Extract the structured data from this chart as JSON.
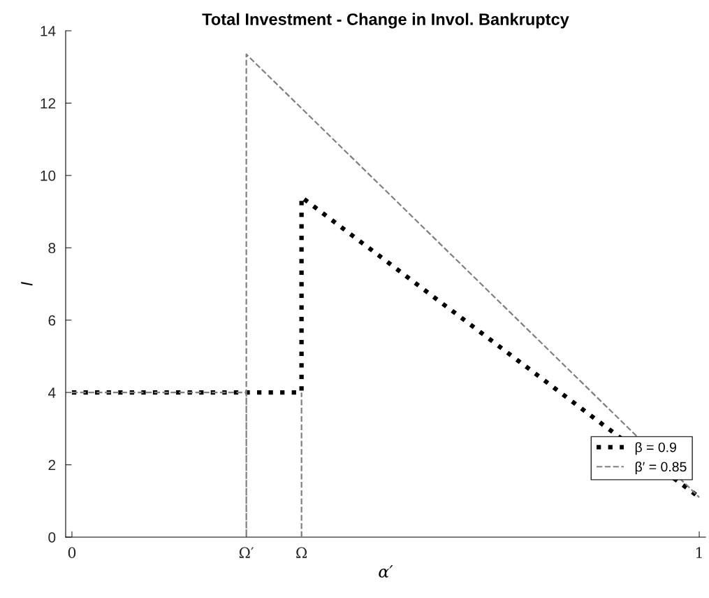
{
  "chart_data": {
    "type": "line",
    "title": "Total Investment - Change in Invol. Bankruptcy",
    "xlabel": "α′",
    "ylabel": "I",
    "xlim": [
      -0.01,
      1.01
    ],
    "ylim": [
      0,
      14
    ],
    "xticks": [
      0,
      {
        "value": 0.278,
        "label": "Ω′"
      },
      {
        "value": 0.366,
        "label": "Ω"
      },
      1
    ],
    "yticks": [
      0,
      2,
      4,
      6,
      8,
      10,
      12,
      14
    ],
    "grid": false,
    "legend": "bottom right",
    "series": [
      {
        "name": "β = 0.9",
        "color": "#000000",
        "line_style": "dotted",
        "x": [
          0,
          0.366,
          0.366,
          1
        ],
        "values": [
          4,
          4,
          9.4,
          1.1
        ]
      },
      {
        "name": "β′ = 0.85",
        "color": "#808080",
        "line_style": "dashed",
        "x": [
          0,
          0.278,
          0.278,
          0.278,
          1
        ],
        "values": [
          4,
          4,
          0,
          13.35,
          1.1
        ]
      },
      {
        "color": "#808080",
        "line_style": "dashed",
        "x": [
          0.366,
          0.366
        ],
        "values": [
          0,
          4
        ]
      }
    ]
  }
}
